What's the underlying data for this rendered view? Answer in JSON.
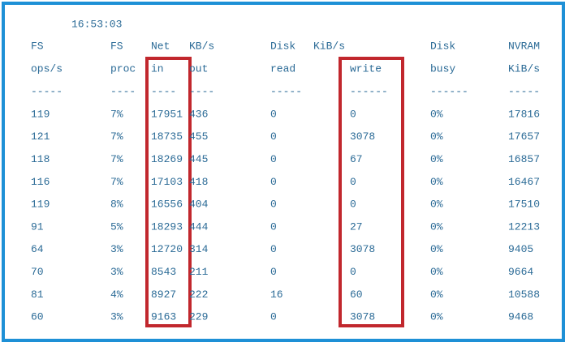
{
  "time": "16:53:03",
  "table": {
    "header": [
      [
        "FS",
        "FS",
        "Net",
        "KB/s",
        "Disk",
        "KiB/s",
        "Disk",
        "NVRAM"
      ],
      [
        "ops/s",
        "proc",
        "in",
        "out",
        "read",
        "write",
        "busy",
        "KiB/s"
      ],
      [
        "-----",
        "----",
        "----",
        "----",
        "-----",
        "------",
        "------",
        "-----"
      ]
    ],
    "rows": [
      [
        "119",
        "7%",
        "17951",
        "436",
        "0",
        "0",
        "0%",
        "17816"
      ],
      [
        "121",
        "7%",
        "18735",
        "455",
        "0",
        "3078",
        "0%",
        "17657"
      ],
      [
        "118",
        "7%",
        "18269",
        "445",
        "0",
        "67",
        "0%",
        "16857"
      ],
      [
        "116",
        "7%",
        "17103",
        "418",
        "0",
        "0",
        "0%",
        "16467"
      ],
      [
        "119",
        "8%",
        "16556",
        "404",
        "0",
        "0",
        "0%",
        "17510"
      ],
      [
        "91",
        "5%",
        "18293",
        "444",
        "0",
        "27",
        "0%",
        "12213"
      ],
      [
        "64",
        "3%",
        "12720",
        "314",
        "0",
        "3078",
        "0%",
        "9405"
      ],
      [
        "70",
        "3%",
        "8543",
        "211",
        "0",
        "0",
        "0%",
        "9664"
      ],
      [
        "81",
        "4%",
        "8927",
        "222",
        "16",
        "60",
        "0%",
        "10588"
      ],
      [
        "60",
        "3%",
        "9163",
        "229",
        "0",
        "3078",
        "0%",
        "9468"
      ]
    ]
  }
}
